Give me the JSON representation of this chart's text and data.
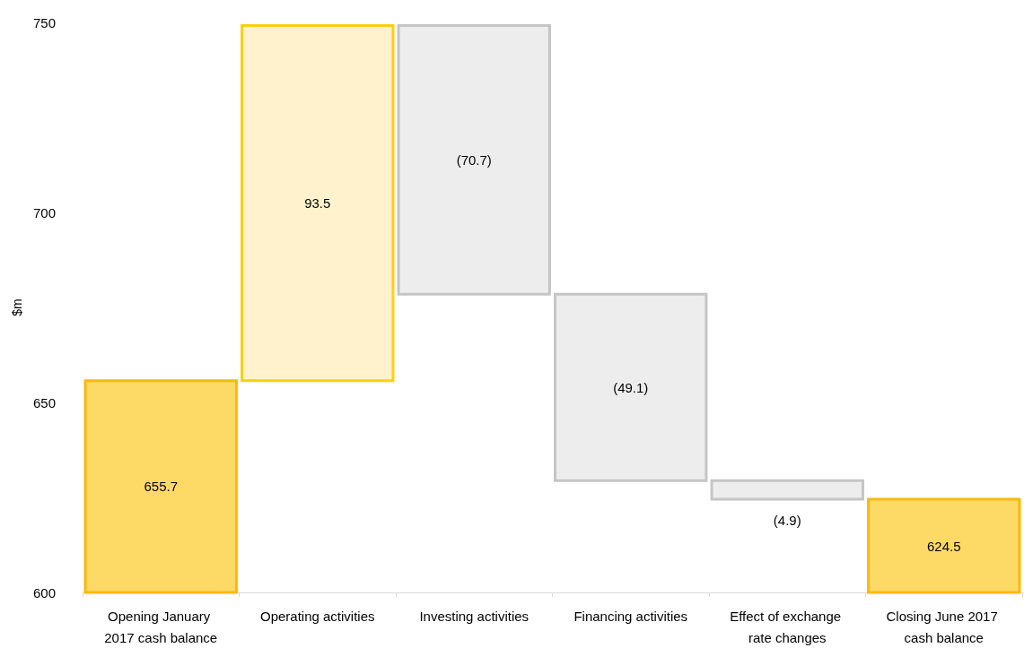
{
  "chart_data": {
    "type": "bar",
    "ylabel": "$m",
    "categories": [
      "Opening January 2017 cash balance",
      "Operating activities",
      "Investing activities",
      "Financing activities",
      "Effect of exchange rate changes",
      "Closing June 2017 cash balance"
    ],
    "base": [
      600,
      655.7,
      749.2,
      678.5,
      629.4,
      600
    ],
    "values": [
      55.7,
      93.5,
      -70.7,
      -49.1,
      -4.9,
      24.5
    ],
    "value_labels": [
      "655.7",
      "93.5",
      "(70.7)",
      "(49.1)",
      "(4.9)",
      "624.5"
    ],
    "colors": [
      "#fdd966",
      "#fff2cc",
      "#ededed",
      "#ededed",
      "#ededed",
      "#fdd966"
    ],
    "ylim": [
      600,
      750
    ],
    "yticks": [
      600,
      650,
      700,
      750
    ],
    "grid": false
  }
}
